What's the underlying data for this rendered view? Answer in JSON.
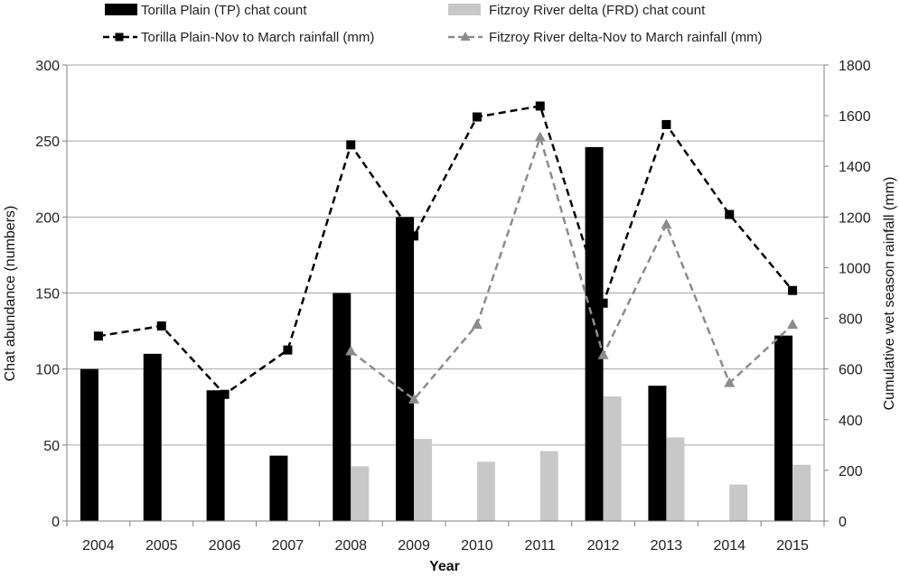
{
  "chart_data": {
    "type": "bar",
    "categories": [
      "2004",
      "2005",
      "2006",
      "2007",
      "2008",
      "2009",
      "2010",
      "2011",
      "2012",
      "2013",
      "2014",
      "2015"
    ],
    "xlabel": "Year",
    "ylabel": "Chat abundance (numbers)",
    "y2label": "Cumulative wet season rainfall (mm)",
    "ylim": [
      0,
      300
    ],
    "y2lim": [
      0,
      1800
    ],
    "yticks": [
      "0",
      "50",
      "100",
      "150",
      "200",
      "250",
      "300"
    ],
    "y2ticks": [
      "0",
      "200",
      "400",
      "600",
      "800",
      "1000",
      "1200",
      "1400",
      "1600",
      "1800"
    ],
    "grid": true,
    "legend_position": "top",
    "series": [
      {
        "name": "Torilla Plain (TP) chat count",
        "kind": "bar",
        "axis": "left",
        "color": "#000000",
        "values": [
          100,
          110,
          86,
          43,
          150,
          200,
          null,
          null,
          246,
          89,
          null,
          122
        ]
      },
      {
        "name": "Fitzroy River delta (FRD) chat count",
        "kind": "bar",
        "axis": "left",
        "color": "#c8c8c8",
        "values": [
          null,
          null,
          null,
          null,
          36,
          54,
          39,
          46,
          82,
          55,
          24,
          37
        ]
      },
      {
        "name": "Torilla Plain-Nov to March rainfall (mm)",
        "kind": "line",
        "axis": "right",
        "color": "#000000",
        "marker": "square",
        "dash": true,
        "values": [
          730,
          770,
          500,
          675,
          1485,
          1125,
          1595,
          1638,
          860,
          1565,
          1210,
          910
        ]
      },
      {
        "name": "Fitzroy River delta-Nov to March rainfall (mm)",
        "kind": "line",
        "axis": "right",
        "color": "#8c8c8c",
        "marker": "triangle",
        "dash": true,
        "values": [
          null,
          null,
          null,
          null,
          670,
          480,
          775,
          1515,
          655,
          1170,
          545,
          775
        ]
      }
    ]
  }
}
